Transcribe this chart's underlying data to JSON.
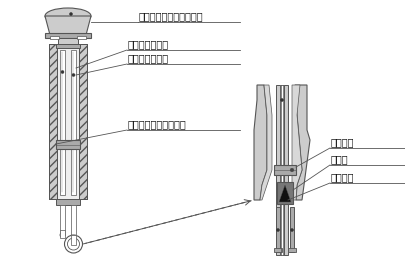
{
  "bg_color": "#ffffff",
  "line_color": "#555555",
  "fill_light": "#cccccc",
  "fill_medium": "#aaaaaa",
  "fill_dark": "#777777",
  "text_color": "#111111",
  "labels": {
    "fan": "ぜんまい、及び、ファン",
    "dry_bulb": "温度計（乾球）",
    "wet_bulb": "温度計（湿球）",
    "gauze": "湿球感温部（ガーゼ）",
    "packing": "パッキン",
    "insulation": "断熱材",
    "inner_tube": "通風内筒"
  },
  "font_size": 7.0,
  "lw": 0.7
}
